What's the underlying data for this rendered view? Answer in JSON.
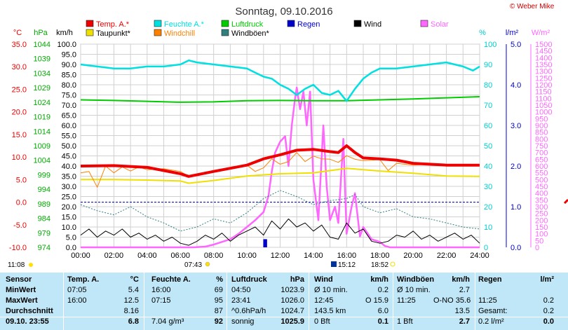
{
  "title": "Sonntag, 09.10.2016",
  "copyright": "© Weber Mike",
  "colors": {
    "temp": "#ee0000",
    "humidity": "#00e0e0",
    "pressure": "#00cc00",
    "rain": "#0000cc",
    "wind": "#000000",
    "solar": "#ff66ff",
    "dewpoint": "#f0e000",
    "windchill": "#ff8000",
    "gusts": "#2f7f7f"
  },
  "legend": [
    {
      "label": "Temp. A.*",
      "color": "#ee0000"
    },
    {
      "label": "Feuchte A.*",
      "color": "#00e0e0"
    },
    {
      "label": "Luftdruck",
      "color": "#00cc00"
    },
    {
      "label": "Regen",
      "color": "#0000cc"
    },
    {
      "label": "Wind",
      "color": "#000000"
    },
    {
      "label": "Solar",
      "color": "#ff66ff"
    },
    {
      "label": "Taupunkt*",
      "color": "#f0e000"
    },
    {
      "label": "Windchill",
      "color": "#ff8000"
    },
    {
      "label": "Windböen*",
      "color": "#2f7f7f"
    }
  ],
  "axes": {
    "temp": {
      "unit": "°C",
      "ticks": [
        "35.0",
        "30.0",
        "25.0",
        "20.0",
        "15.0",
        "10.0",
        "5.0",
        "0.0",
        "-5.0",
        "-10.0"
      ]
    },
    "pressure": {
      "unit": "hPa",
      "ticks": [
        "1044",
        "1039",
        "1034",
        "1029",
        "1024",
        "1019",
        "1014",
        "1009",
        "1004",
        "999",
        "994",
        "989",
        "984",
        "979",
        "974"
      ]
    },
    "wind": {
      "unit": "km/h",
      "ticks": [
        "100.0",
        "95.0",
        "90.0",
        "85.0",
        "80.0",
        "75.0",
        "70.0",
        "65.0",
        "60.0",
        "55.0",
        "50.0",
        "45.0",
        "40.0",
        "35.0",
        "30.0",
        "25.0",
        "20.0",
        "15.0",
        "10.0",
        "5.0",
        "0.0"
      ]
    },
    "humidity": {
      "unit": "%",
      "ticks": [
        "100",
        "90",
        "80",
        "70",
        "60",
        "50",
        "40",
        "30",
        "20",
        "10",
        "0"
      ]
    },
    "rain": {
      "unit": "l/m²",
      "ticks": [
        "5.0",
        "4.0",
        "3.0",
        "2.0",
        "1.0",
        "0.0"
      ]
    },
    "solar": {
      "unit": "W/m²",
      "ticks": [
        "1500",
        "1450",
        "1400",
        "1350",
        "1300",
        "1250",
        "1200",
        "1150",
        "1100",
        "1050",
        "1000",
        "950",
        "900",
        "850",
        "800",
        "750",
        "700",
        "650",
        "600",
        "550",
        "500",
        "450",
        "400",
        "350",
        "300",
        "250",
        "200",
        "150",
        "100",
        "50",
        "0"
      ]
    },
    "time": {
      "ticks": [
        "00:00",
        "02:00",
        "04:00",
        "06:00",
        "08:00",
        "10:00",
        "12:00",
        "14:00",
        "16:00",
        "18:00",
        "20:00",
        "22:00",
        "24:00"
      ]
    }
  },
  "markers": {
    "now": "11:08",
    "sunrise": "07:43",
    "solar_noon": "15:12",
    "sunset": "18:52"
  },
  "chart_data": {
    "type": "line",
    "x_unit": "hour",
    "series": [
      {
        "name": "Temp. A.*",
        "axis": "temp",
        "x": [
          0,
          2,
          4,
          6,
          6.5,
          8,
          10,
          11,
          12,
          13,
          14,
          15,
          15.5,
          16,
          16.5,
          17,
          18,
          19,
          20,
          21,
          22,
          23,
          24
        ],
        "y": [
          8.0,
          8.1,
          7.7,
          6.3,
          5.7,
          6.8,
          8.2,
          9.6,
          10.5,
          11.5,
          11.7,
          11.2,
          11.0,
          12.5,
          11.0,
          9.8,
          9.6,
          9.3,
          8.6,
          8.4,
          8.2,
          8.2,
          8.2
        ]
      },
      {
        "name": "Feuchte A.*",
        "axis": "humidity",
        "x": [
          0,
          1,
          2,
          3,
          4,
          5,
          6,
          6.5,
          7,
          8,
          9,
          10,
          10.5,
          11,
          11.5,
          12,
          12.5,
          13,
          13.5,
          14,
          14.5,
          15,
          15.5,
          16,
          16.5,
          17,
          17.5,
          18,
          19,
          20,
          21,
          22,
          23,
          23.6,
          24
        ],
        "y": [
          90,
          89,
          88,
          88,
          89,
          89,
          90,
          92,
          91,
          90,
          89,
          88,
          86,
          84,
          83,
          80,
          78,
          75,
          78,
          80,
          76,
          75,
          77,
          72,
          78,
          83,
          86,
          88,
          88,
          89,
          90,
          91,
          89,
          87,
          89
        ]
      },
      {
        "name": "Luftdruck",
        "axis": "pressure",
        "x": [
          0,
          2,
          4,
          6,
          8,
          10,
          12,
          14,
          16,
          18,
          20,
          22,
          24
        ],
        "y": [
          1024.8,
          1024.6,
          1024.3,
          1024.0,
          1024.1,
          1024.5,
          1024.6,
          1024.5,
          1024.5,
          1024.8,
          1025.1,
          1025.5,
          1025.9
        ]
      },
      {
        "name": "Taupunkt*",
        "axis": "temp",
        "x": [
          0,
          2,
          4,
          6,
          6.5,
          8,
          10,
          12,
          14,
          16,
          18,
          20,
          22,
          24
        ],
        "y": [
          5.0,
          5.0,
          4.9,
          4.7,
          4.2,
          4.8,
          5.8,
          6.3,
          6.5,
          7.5,
          6.9,
          6.4,
          5.8,
          5.7
        ]
      },
      {
        "name": "Windchill",
        "axis": "temp",
        "x": [
          0,
          0.5,
          1,
          1.5,
          2,
          2.5,
          3,
          3.5,
          4,
          5,
          6,
          6.5,
          7,
          8,
          9,
          10,
          10.5,
          11,
          11.5,
          12,
          12.5,
          13,
          13.5,
          14,
          14.5,
          15,
          15.5,
          16,
          16.5,
          17,
          18,
          18.5,
          19,
          20,
          21,
          22,
          23,
          24
        ],
        "y": [
          6.5,
          6.8,
          3.3,
          8.0,
          6.5,
          7.8,
          6.9,
          7.8,
          7.2,
          7.4,
          6.8,
          5.7,
          6.1,
          6.8,
          7.3,
          8.2,
          6.8,
          7.6,
          9.6,
          8.4,
          9.0,
          11.0,
          9.0,
          10.2,
          9.6,
          9.5,
          8.8,
          10.3,
          9.5,
          9.2,
          9.4,
          7.0,
          8.6,
          8.2,
          8.4,
          8.0,
          8.2,
          8.1
        ]
      },
      {
        "name": "Wind",
        "axis": "wind",
        "x": [
          0,
          0.5,
          1,
          1.5,
          2,
          2.5,
          3,
          3.5,
          4,
          4.5,
          5,
          5.5,
          6,
          6.5,
          7,
          7.5,
          8,
          8.5,
          9,
          9.5,
          10,
          10.5,
          11,
          11.5,
          12,
          12.5,
          13,
          13.5,
          14,
          14.5,
          15,
          15.5,
          16,
          16.5,
          17,
          17.5,
          18,
          18.5,
          19,
          19.5,
          20,
          20.5,
          21,
          21.5,
          22,
          22.5,
          23,
          23.5,
          24
        ],
        "y": [
          6,
          9,
          5,
          8,
          6,
          9,
          5,
          7,
          4,
          6,
          3,
          5,
          2,
          1,
          3,
          6,
          4,
          7,
          3,
          6,
          8,
          10,
          6,
          13,
          9,
          14,
          10,
          12,
          8,
          11,
          5,
          4,
          12,
          7,
          9,
          3,
          2,
          3,
          6,
          5,
          8,
          4,
          6,
          3,
          5,
          7,
          4,
          6,
          2
        ]
      },
      {
        "name": "Windböen*",
        "axis": "wind",
        "x": [
          0,
          1,
          2,
          3,
          4,
          5,
          6,
          7,
          8,
          9,
          10,
          11,
          12,
          13,
          14,
          15,
          16,
          16.5,
          17,
          18,
          19,
          20,
          21,
          22,
          23,
          24
        ],
        "y": [
          21,
          18,
          16,
          20,
          15,
          12,
          8,
          10,
          14,
          12,
          17,
          24,
          28,
          25,
          21,
          23,
          24,
          26,
          20,
          17,
          19,
          15,
          14,
          12,
          10,
          9
        ]
      },
      {
        "name": "Solar",
        "axis": "solar",
        "x": [
          0,
          6.8,
          7.5,
          8,
          9,
          9.5,
          10,
          10.5,
          11,
          11.3,
          11.5,
          11.7,
          12,
          12.3,
          12.5,
          12.7,
          12.9,
          13,
          13.2,
          13.4,
          13.6,
          13.8,
          14,
          14.3,
          14.6,
          14.8,
          15,
          15.3,
          15.5,
          15.8,
          16,
          16.3,
          16.5,
          16.8,
          17,
          17.5,
          18,
          18.3,
          18.6,
          24
        ],
        "y": [
          0,
          0,
          5,
          20,
          60,
          100,
          150,
          200,
          260,
          380,
          560,
          700,
          780,
          820,
          600,
          900,
          1100,
          1180,
          1020,
          1150,
          900,
          1150,
          500,
          200,
          900,
          450,
          200,
          300,
          180,
          800,
          100,
          300,
          400,
          80,
          150,
          60,
          40,
          10,
          0,
          0
        ]
      },
      {
        "name": "Regen",
        "axis": "rain",
        "x": [
          11.05,
          11.15
        ],
        "y": [
          0.2,
          0.2
        ]
      }
    ],
    "xlim": [
      0,
      24
    ],
    "ylim": [
      -10,
      35
    ],
    "grid": true
  },
  "table": {
    "headers": [
      "Sensor",
      "Temp. A.",
      "°C",
      "Feuchte A.",
      "%",
      "Luftdruck",
      "hPa",
      "Wind",
      "km/h",
      "Windböen",
      "km/h",
      "Regen",
      "l/m²"
    ],
    "rows": [
      [
        "MinWert",
        "07:05",
        "5.4",
        "16:00",
        "69",
        "04:50",
        "1023.9",
        "Ø 10 min.",
        "0.2",
        "Ø 10 min.",
        "2.7",
        "",
        ""
      ],
      [
        "MaxWert",
        "16:00",
        "12.5",
        "07:15",
        "95",
        "23:41",
        "1026.0",
        "12:45",
        "O 15.9",
        "11:25",
        "O-NO 35.6",
        "11:25",
        "0.2"
      ],
      [
        "Durchschnitt",
        "",
        "8.16",
        "",
        "87",
        "^0.6hPa/h",
        "1024.7",
        "143.5 km",
        "6.0",
        "",
        "13.5",
        "Gesamt:",
        "0.2"
      ],
      [
        "09.10. 23:55",
        "",
        "6.8",
        "7.04 g/m³",
        "92",
        "sonnig",
        "1025.9",
        "0 Bft",
        "0.1",
        "1 Bft",
        "2.7",
        "0.2 l/m²",
        "0.0"
      ]
    ]
  }
}
